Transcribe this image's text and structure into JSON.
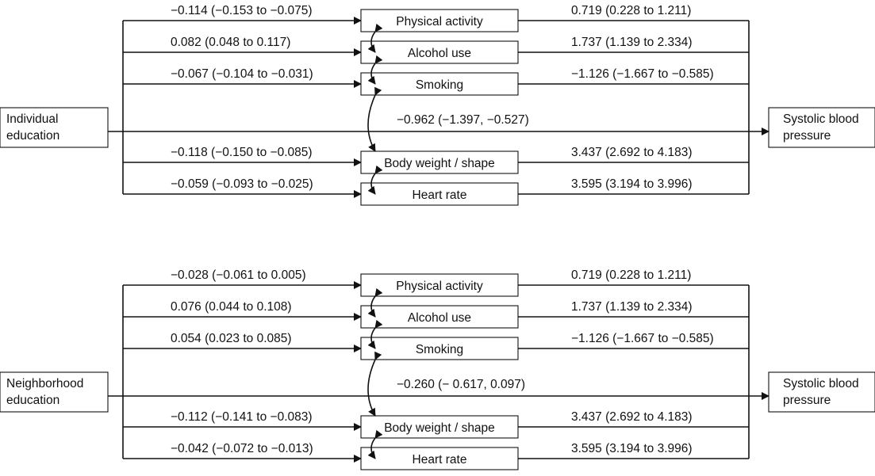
{
  "panels": [
    {
      "exposure": [
        "Individual",
        "education"
      ],
      "outcome": [
        "Systolic blood",
        "pressure"
      ],
      "direct_effect": "−0.962 (−1.397, −0.527)",
      "mediators": [
        {
          "label": "Physical activity",
          "a_path": "−0.114 (−0.153 to −0.075)",
          "b_path": "0.719 (0.228 to 1.211)"
        },
        {
          "label": "Alcohol use",
          "a_path": "0.082 (0.048 to 0.117)",
          "b_path": "1.737 (1.139 to 2.334)"
        },
        {
          "label": "Smoking",
          "a_path": "−0.067 (−0.104 to −0.031)",
          "b_path": "−1.126 (−1.667 to −0.585)"
        },
        {
          "label": "Body weight / shape",
          "a_path": "−0.118 (−0.150 to −0.085)",
          "b_path": "3.437 (2.692 to 4.183)"
        },
        {
          "label": "Heart rate",
          "a_path": "−0.059 (−0.093 to −0.025)",
          "b_path": "3.595 (3.194 to 3.996)"
        }
      ]
    },
    {
      "exposure": [
        "Neighborhood",
        "education"
      ],
      "outcome": [
        "Systolic blood",
        "pressure"
      ],
      "direct_effect": "−0.260 (− 0.617, 0.097)",
      "mediators": [
        {
          "label": "Physical activity",
          "a_path": "−0.028 (−0.061 to 0.005)",
          "b_path": "0.719 (0.228 to 1.211)"
        },
        {
          "label": "Alcohol use",
          "a_path": "0.076 (0.044 to 0.108)",
          "b_path": "1.737 (1.139 to 2.334)"
        },
        {
          "label": "Smoking",
          "a_path": "0.054 (0.023 to 0.085)",
          "b_path": "−1.126 (−1.667 to −0.585)"
        },
        {
          "label": "Body weight / shape",
          "a_path": "−0.112 (−0.141 to −0.083)",
          "b_path": "3.437 (2.692 to 4.183)"
        },
        {
          "label": "Heart rate",
          "a_path": "−0.042 (−0.072 to −0.013)",
          "b_path": "3.595 (3.194 to 3.996)"
        }
      ]
    }
  ]
}
